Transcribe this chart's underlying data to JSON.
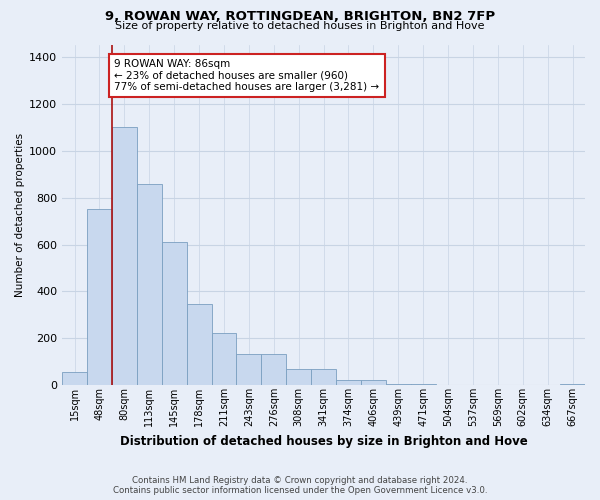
{
  "title1": "9, ROWAN WAY, ROTTINGDEAN, BRIGHTON, BN2 7FP",
  "title2": "Size of property relative to detached houses in Brighton and Hove",
  "xlabel": "Distribution of detached houses by size in Brighton and Hove",
  "ylabel": "Number of detached properties",
  "footnote1": "Contains HM Land Registry data © Crown copyright and database right 2024.",
  "footnote2": "Contains public sector information licensed under the Open Government Licence v3.0.",
  "categories": [
    "15sqm",
    "48sqm",
    "80sqm",
    "113sqm",
    "145sqm",
    "178sqm",
    "211sqm",
    "243sqm",
    "276sqm",
    "308sqm",
    "341sqm",
    "374sqm",
    "406sqm",
    "439sqm",
    "471sqm",
    "504sqm",
    "537sqm",
    "569sqm",
    "602sqm",
    "634sqm",
    "667sqm"
  ],
  "values": [
    55,
    750,
    1100,
    860,
    610,
    345,
    225,
    135,
    135,
    70,
    70,
    25,
    25,
    8,
    8,
    0,
    0,
    0,
    0,
    0,
    8
  ],
  "bar_color": "#c8d8ee",
  "bar_edge_color": "#7a9fc0",
  "vline_x_index": 2,
  "vline_color": "#aa1111",
  "annotation_text": "9 ROWAN WAY: 86sqm\n← 23% of detached houses are smaller (960)\n77% of semi-detached houses are larger (3,281) →",
  "annotation_box_color": "#ffffff",
  "annotation_box_edge": "#cc2222",
  "ylim": [
    0,
    1450
  ],
  "yticks": [
    0,
    200,
    400,
    600,
    800,
    1000,
    1200,
    1400
  ],
  "grid_color": "#c8d4e4",
  "background_color": "#e8eef8"
}
